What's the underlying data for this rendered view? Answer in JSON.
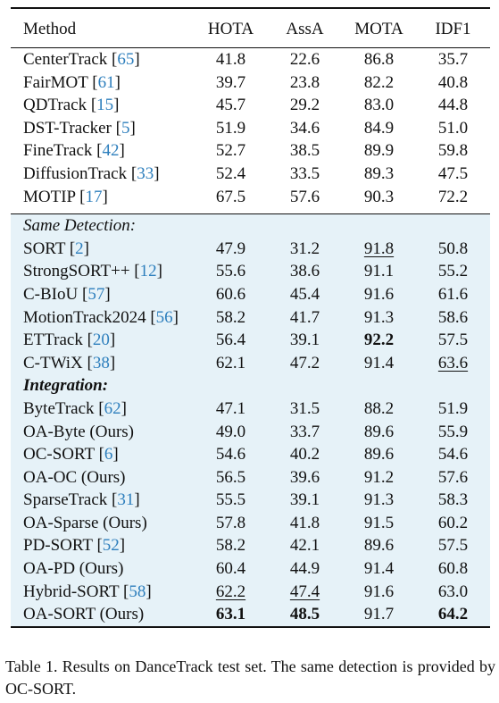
{
  "table": {
    "headers": [
      "Method",
      "HOTA",
      "AssA",
      "MOTA",
      "IDF1"
    ],
    "group1": [
      {
        "method": "CenterTrack",
        "cite": "65",
        "values": [
          "41.8",
          "22.6",
          "86.8",
          "35.7"
        ]
      },
      {
        "method": "FairMOT",
        "cite": "61",
        "values": [
          "39.7",
          "23.8",
          "82.2",
          "40.8"
        ]
      },
      {
        "method": "QDTrack",
        "cite": "15",
        "values": [
          "45.7",
          "29.2",
          "83.0",
          "44.8"
        ]
      },
      {
        "method": "DST-Tracker",
        "cite": "5",
        "values": [
          "51.9",
          "34.6",
          "84.9",
          "51.0"
        ]
      },
      {
        "method": "FineTrack",
        "cite": "42",
        "values": [
          "52.7",
          "38.5",
          "89.9",
          "59.8"
        ]
      },
      {
        "method": "DiffusionTrack",
        "cite": "33",
        "values": [
          "52.4",
          "33.5",
          "89.3",
          "47.5"
        ]
      },
      {
        "method": "MOTIP",
        "cite": "17",
        "values": [
          "67.5",
          "57.6",
          "90.3",
          "72.2"
        ]
      }
    ],
    "section_same_detection": "Same Detection:",
    "group2": [
      {
        "method": "SORT",
        "cite": "2",
        "values": [
          "47.9",
          "31.2",
          "91.8",
          "50.8"
        ],
        "bold": [],
        "underline": [
          2
        ]
      },
      {
        "method": "StrongSORT++",
        "cite": "12",
        "values": [
          "55.6",
          "38.6",
          "91.1",
          "55.2"
        ],
        "bold": [],
        "underline": []
      },
      {
        "method": "C-BIoU",
        "cite": "57",
        "values": [
          "60.6",
          "45.4",
          "91.6",
          "61.6"
        ],
        "bold": [],
        "underline": []
      },
      {
        "method": "MotionTrack2024",
        "cite": "56",
        "values": [
          "58.2",
          "41.7",
          "91.3",
          "58.6"
        ],
        "bold": [],
        "underline": []
      },
      {
        "method": "ETTrack",
        "cite": "20",
        "values": [
          "56.4",
          "39.1",
          "92.2",
          "57.5"
        ],
        "bold": [
          2
        ],
        "underline": []
      },
      {
        "method": "C-TWiX",
        "cite": "38",
        "values": [
          "62.1",
          "47.2",
          "91.4",
          "63.6"
        ],
        "bold": [],
        "underline": [
          3
        ]
      }
    ],
    "section_integration": "Integration:",
    "group3": [
      {
        "method": "ByteTrack",
        "cite": "62",
        "values": [
          "47.1",
          "31.5",
          "88.2",
          "51.9"
        ],
        "bold": [],
        "underline": []
      },
      {
        "method": "OA-Byte (Ours)",
        "cite": "",
        "values": [
          "49.0",
          "33.7",
          "89.6",
          "55.9"
        ],
        "bold": [],
        "underline": []
      },
      {
        "method": "OC-SORT",
        "cite": "6",
        "values": [
          "54.6",
          "40.2",
          "89.6",
          "54.6"
        ],
        "bold": [],
        "underline": []
      },
      {
        "method": "OA-OC (Ours)",
        "cite": "",
        "values": [
          "56.5",
          "39.6",
          "91.2",
          "57.6"
        ],
        "bold": [],
        "underline": []
      },
      {
        "method": "SparseTrack",
        "cite": "31",
        "values": [
          "55.5",
          "39.1",
          "91.3",
          "58.3"
        ],
        "bold": [],
        "underline": []
      },
      {
        "method": "OA-Sparse (Ours)",
        "cite": "",
        "values": [
          "57.8",
          "41.8",
          "91.5",
          "60.2"
        ],
        "bold": [],
        "underline": []
      },
      {
        "method": "PD-SORT",
        "cite": "52",
        "values": [
          "58.2",
          "42.1",
          "89.6",
          "57.5"
        ],
        "bold": [],
        "underline": []
      },
      {
        "method": "OA-PD (Ours)",
        "cite": "",
        "values": [
          "60.4",
          "44.9",
          "91.4",
          "60.8"
        ],
        "bold": [],
        "underline": []
      },
      {
        "method": "Hybrid-SORT",
        "cite": "58",
        "values": [
          "62.2",
          "47.4",
          "91.6",
          "63.0"
        ],
        "bold": [],
        "underline": [
          0,
          1
        ]
      },
      {
        "method": "OA-SORT (Ours)",
        "cite": "",
        "values": [
          "63.1",
          "48.5",
          "91.7",
          "64.2"
        ],
        "bold": [
          0,
          1,
          3
        ],
        "underline": []
      }
    ]
  },
  "caption": "Table 1.  Results on DanceTrack test set.  The same detection is provided by OC-SORT."
}
